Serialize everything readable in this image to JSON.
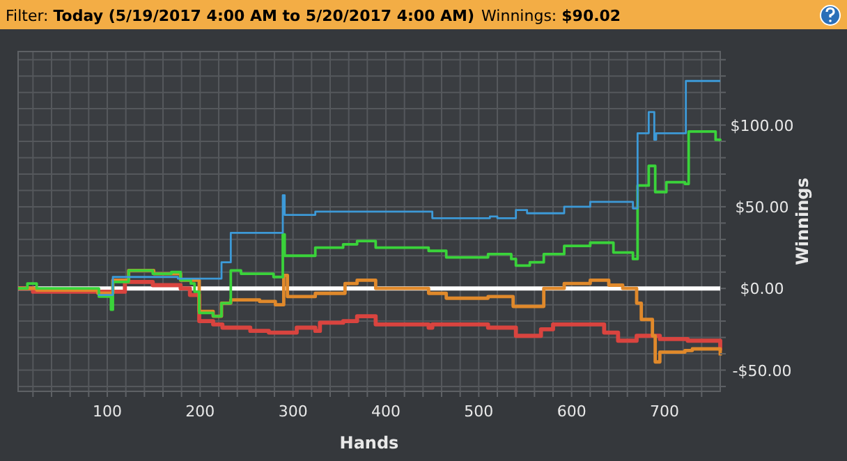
{
  "chart_data": {
    "type": "step",
    "title": "Filter: Today (5/19/2017 4:00 AM to 5/20/2017 4:00 AM)",
    "subtitle": "Winnings: $90.02",
    "xlabel": "Hands",
    "ylabel": "Winnings",
    "xlim": [
      4,
      760
    ],
    "ylim": [
      -63,
      145
    ],
    "xticks": [
      {
        "value": 20,
        "label": null
      },
      {
        "value": 40,
        "label": null
      },
      {
        "value": 60,
        "label": null
      },
      {
        "value": 80,
        "label": null
      },
      100,
      {
        "value": 120,
        "label": null
      },
      {
        "value": 140,
        "label": null
      },
      {
        "value": 160,
        "label": null
      },
      {
        "value": 180,
        "label": null
      },
      200,
      {
        "value": 220,
        "label": null
      },
      {
        "value": 240,
        "label": null
      },
      {
        "value": 260,
        "label": null
      },
      {
        "value": 280,
        "label": null
      },
      300,
      {
        "value": 320,
        "label": null
      },
      {
        "value": 340,
        "label": null
      },
      {
        "value": 360,
        "label": null
      },
      {
        "value": 380,
        "label": null
      },
      400,
      {
        "value": 420,
        "label": null
      },
      {
        "value": 440,
        "label": null
      },
      {
        "value": 460,
        "label": null
      },
      {
        "value": 480,
        "label": null
      },
      500,
      {
        "value": 520,
        "label": null
      },
      {
        "value": 540,
        "label": null
      },
      {
        "value": 560,
        "label": null
      },
      {
        "value": 580,
        "label": null
      },
      600,
      {
        "value": 620,
        "label": null
      },
      {
        "value": 640,
        "label": null
      },
      {
        "value": 660,
        "label": null
      },
      {
        "value": 680,
        "label": null
      },
      700,
      {
        "value": 720,
        "label": null
      },
      {
        "value": 740,
        "label": null
      }
    ],
    "yticks": [
      {
        "value": -60,
        "label": null
      },
      {
        "value": -50,
        "label": "-$50.00"
      },
      {
        "value": -40,
        "label": null
      },
      {
        "value": -30,
        "label": null
      },
      {
        "value": -20,
        "label": null
      },
      {
        "value": -10,
        "label": null
      },
      {
        "value": 0,
        "label": "$0.00"
      },
      {
        "value": 10,
        "label": null
      },
      {
        "value": 20,
        "label": null
      },
      {
        "value": 30,
        "label": null
      },
      {
        "value": 40,
        "label": null
      },
      {
        "value": 50,
        "label": "$50.00"
      },
      {
        "value": 60,
        "label": null
      },
      {
        "value": 70,
        "label": null
      },
      {
        "value": 80,
        "label": null
      },
      {
        "value": 90,
        "label": null
      },
      {
        "value": 100,
        "label": "$100.00"
      },
      {
        "value": 110,
        "label": null
      },
      {
        "value": 120,
        "label": null
      },
      {
        "value": 130,
        "label": null
      },
      {
        "value": 140,
        "label": null
      }
    ],
    "grid": true,
    "ref_lines": [
      {
        "axis": "y",
        "value": 0,
        "color": "#ffffff"
      }
    ],
    "series": [
      {
        "color": "#3d9ad8",
        "x": [
          90,
          106,
          176,
          223,
          233,
          289,
          291,
          324,
          450,
          512,
          520,
          540,
          552,
          592,
          620,
          666,
          671,
          683,
          689,
          691,
          723,
          760
        ],
        "values": [
          -4,
          7,
          6,
          16,
          34,
          57,
          45,
          47,
          43,
          44,
          43,
          48,
          46,
          50,
          53,
          49,
          95,
          108,
          91,
          95,
          127,
          127
        ]
      },
      {
        "color": "#3ad33a",
        "x": [
          4,
          14,
          24,
          91,
          104,
          106,
          123,
          144,
          149,
          169,
          179,
          190,
          194,
          199,
          214,
          223,
          233,
          244,
          279,
          289,
          291,
          324,
          354,
          369,
          389,
          446,
          465,
          510,
          535,
          540,
          555,
          570,
          592,
          620,
          645,
          666,
          671,
          683,
          690,
          702,
          722,
          726,
          755,
          760
        ],
        "values": [
          0,
          3,
          0,
          -5,
          -13,
          4,
          11,
          11,
          9,
          10,
          5,
          3,
          -2,
          -15,
          -17,
          -9,
          11,
          9,
          7,
          33,
          20,
          25,
          27,
          29,
          25,
          23,
          19,
          21,
          18,
          14,
          16,
          21,
          26,
          28,
          22,
          18,
          63,
          75,
          59,
          65,
          64,
          96,
          91,
          90
        ]
      },
      {
        "color": "#e0892b",
        "x": [
          4,
          24,
          90,
          106,
          123,
          150,
          179,
          199,
          214,
          223,
          233,
          264,
          281,
          290,
          294,
          324,
          356,
          369,
          389,
          446,
          465,
          510,
          537,
          570,
          592,
          620,
          640,
          655,
          670,
          675,
          687,
          690,
          695,
          722,
          730,
          760
        ],
        "values": [
          0,
          -1,
          -3,
          5,
          11,
          9,
          5,
          -14,
          -17,
          -9,
          -7,
          -8,
          -10,
          8,
          -5,
          -3,
          3,
          5,
          0,
          -3,
          -6,
          -5,
          -11,
          0,
          3,
          5,
          2,
          0,
          -9,
          -19,
          -29,
          -45,
          -39,
          -38,
          -37,
          -41
        ]
      },
      {
        "color": "#d9443f",
        "x": [
          4,
          20,
          106,
          119,
          149,
          179,
          189,
          199,
          214,
          224,
          254,
          274,
          304,
          324,
          329,
          354,
          369,
          389,
          446,
          450,
          510,
          540,
          567,
          580,
          635,
          650,
          670,
          695,
          725,
          760
        ],
        "values": [
          0,
          -2,
          -2,
          4,
          2,
          0,
          -4,
          -20,
          -22,
          -24,
          -26,
          -27,
          -24,
          -26,
          -21,
          -20,
          -17,
          -22,
          -24,
          -22,
          -24,
          -29,
          -25,
          -22,
          -27,
          -32,
          -29,
          -31,
          -32,
          -38
        ]
      }
    ]
  }
}
